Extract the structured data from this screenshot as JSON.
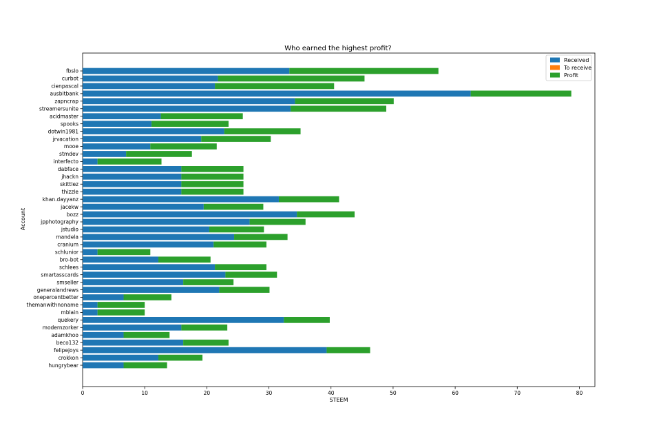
{
  "chart_data": {
    "type": "bar",
    "orientation": "horizontal",
    "stacked": true,
    "title": "Who earned the highest profit?",
    "xlabel": "STEEM",
    "ylabel": "Account",
    "xlim": [
      0,
      82.5
    ],
    "xticks": [
      0,
      10,
      20,
      30,
      40,
      50,
      60,
      70,
      80
    ],
    "legend_position": "top-right",
    "grid": false,
    "categories": [
      "fbslo",
      "curbot",
      "cienpascal",
      "ausbitbank",
      "zapncrap",
      "streamersunite",
      "acidmaster",
      "spooks",
      "dotwin1981",
      "jrvacation",
      "mooe",
      "stmdev",
      "interfecto",
      "dabface",
      "jhackn",
      "skittlez",
      "thizzle",
      "khan.dayyanz",
      "jacekw",
      "bozz",
      "jpphotography",
      "jstudio",
      "mandela",
      "cranium",
      "schlunior",
      "bro-bot",
      "schlees",
      "smartasscards",
      "smseller",
      "generalandrews",
      "onepercentbetter",
      "themanwithnoname",
      "mblain",
      "quekery",
      "modernzorker",
      "adamkhoo",
      "beco132",
      "felipejoys",
      "crokkon",
      "hungrybear"
    ],
    "series": [
      {
        "name": "Received",
        "color": "#1f77b4",
        "values": [
          33.3,
          21.8,
          21.3,
          62.5,
          34.2,
          33.5,
          12.6,
          11.1,
          22.8,
          19.1,
          10.9,
          7.0,
          2.4,
          15.9,
          15.9,
          15.9,
          15.9,
          31.6,
          19.5,
          34.5,
          26.9,
          20.4,
          24.4,
          21.1,
          2.4,
          12.2,
          21.3,
          23.0,
          16.2,
          22.0,
          6.6,
          2.4,
          2.4,
          32.4,
          15.9,
          6.6,
          16.2,
          39.3,
          12.2,
          6.6
        ]
      },
      {
        "name": "To receive",
        "color": "#ff7f0e",
        "values": [
          0,
          0,
          0,
          0,
          0,
          0,
          0,
          0,
          0,
          0,
          0,
          0,
          0,
          0,
          0,
          0,
          0,
          0,
          0,
          0,
          0,
          0,
          0,
          0,
          0,
          0,
          0,
          0,
          0,
          0,
          0,
          0,
          0,
          0,
          0,
          0,
          0,
          0,
          0,
          0
        ]
      },
      {
        "name": "Profit",
        "color": "#2ca02c",
        "values": [
          24.0,
          23.6,
          19.2,
          16.2,
          15.9,
          15.4,
          13.2,
          12.4,
          12.3,
          11.2,
          10.7,
          10.6,
          10.3,
          10.0,
          10.0,
          10.0,
          10.0,
          9.7,
          9.6,
          9.3,
          9.0,
          8.8,
          8.6,
          8.5,
          8.5,
          8.4,
          8.3,
          8.3,
          8.1,
          8.1,
          7.7,
          7.6,
          7.6,
          7.4,
          7.4,
          7.4,
          7.3,
          7.0,
          7.1,
          7.0
        ]
      }
    ]
  }
}
